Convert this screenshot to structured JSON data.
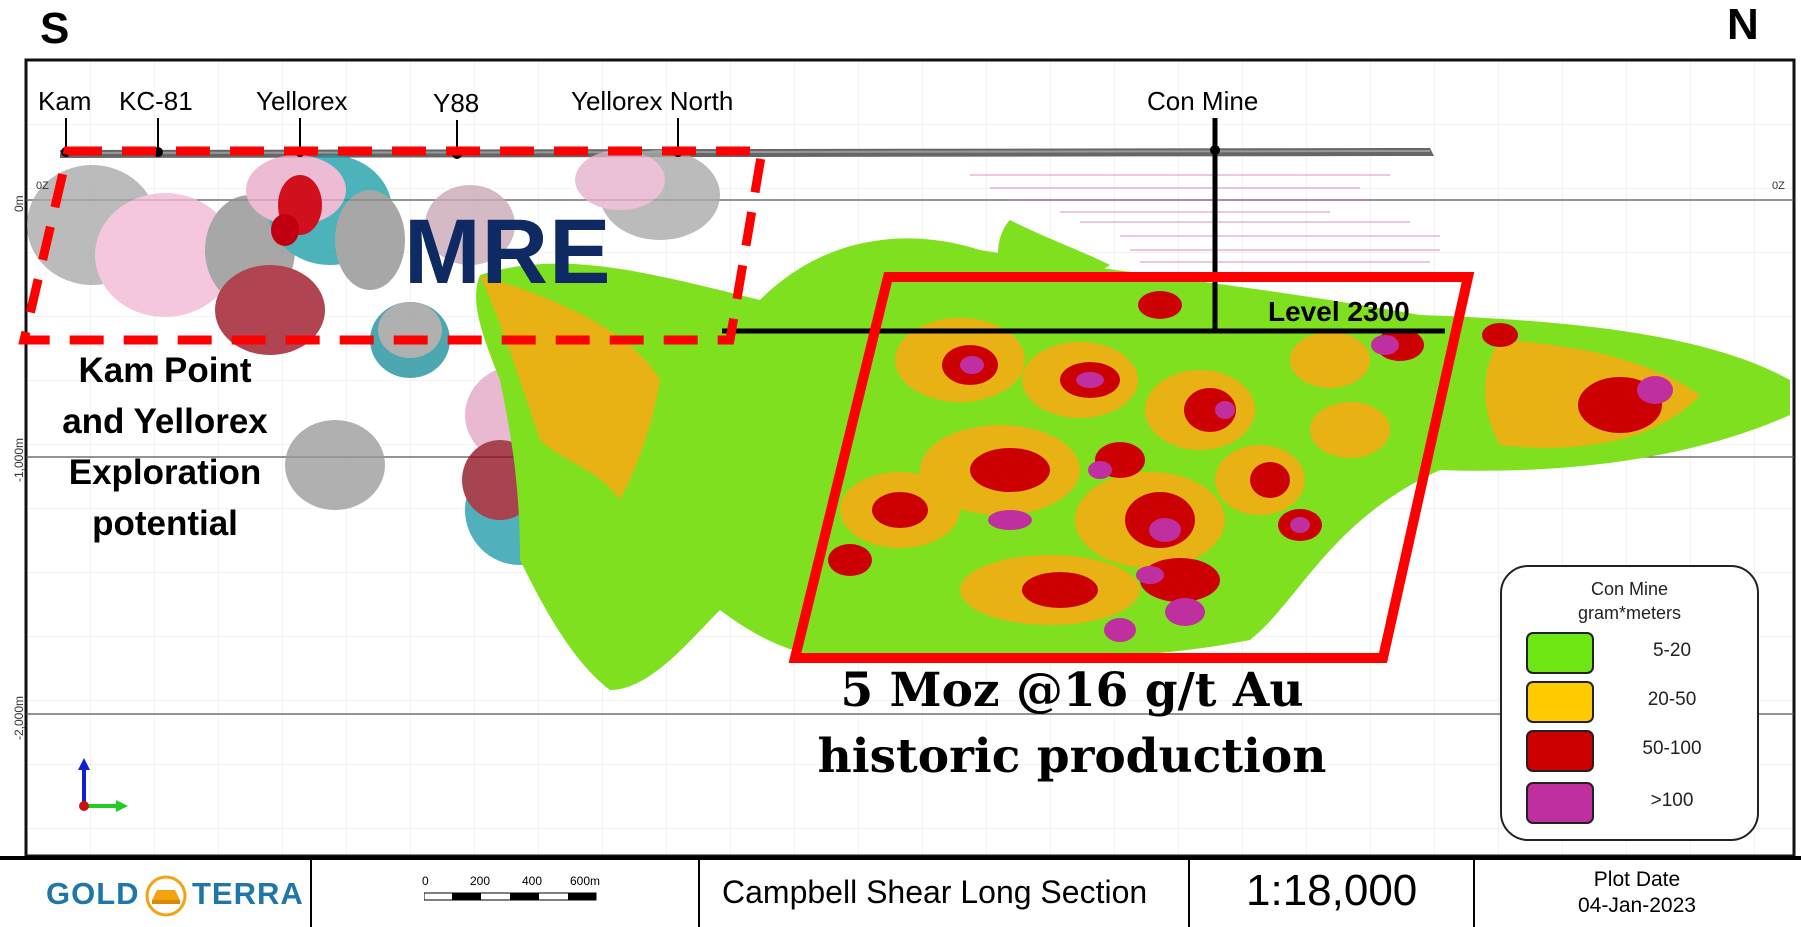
{
  "compass": {
    "south": "S",
    "north": "N"
  },
  "mines": [
    "Kam",
    "KC-81",
    "Yellorex",
    "Y88",
    "Yellorex North",
    "Con Mine"
  ],
  "mre_label": "MRE",
  "level_label": "Level 2300",
  "exploration_label": [
    "Kam Point",
    "and Yellorex",
    "Exploration",
    "potential"
  ],
  "production_label": [
    "5 Moz @16 g/t Au",
    "historic production"
  ],
  "elevation_axis": {
    "ticks": [
      "0m",
      "-1,000m",
      "-2,000m"
    ],
    "oz_left": "0Z",
    "oz_right": "0Z"
  },
  "legend": {
    "title_line1": "Con Mine",
    "title_line2": "gram*meters",
    "items": [
      {
        "label": "5-20",
        "color": "#6ee614"
      },
      {
        "label": "20-50",
        "color": "#ffcc00"
      },
      {
        "label": "50-100",
        "color": "#cc0000"
      },
      {
        "label": ">100",
        "color": "#c02fa0"
      }
    ]
  },
  "footer": {
    "logo_left": "GOLD",
    "logo_right": "TERRA",
    "scalebar_ticks": [
      "0",
      "200",
      "400",
      "600m"
    ],
    "section_title": "Campbell Shear Long Section",
    "scale": "1:18,000",
    "plot_date_label": "Plot Date",
    "plot_date": "04-Jan-2023"
  },
  "colors": {
    "highlight_red": "#ff0000",
    "mre_blue": "#0f2a63",
    "grade_green": "#6ee614",
    "grade_yellow": "#ffcc00",
    "grade_red": "#cc0000",
    "grade_magenta": "#c02fa0"
  }
}
